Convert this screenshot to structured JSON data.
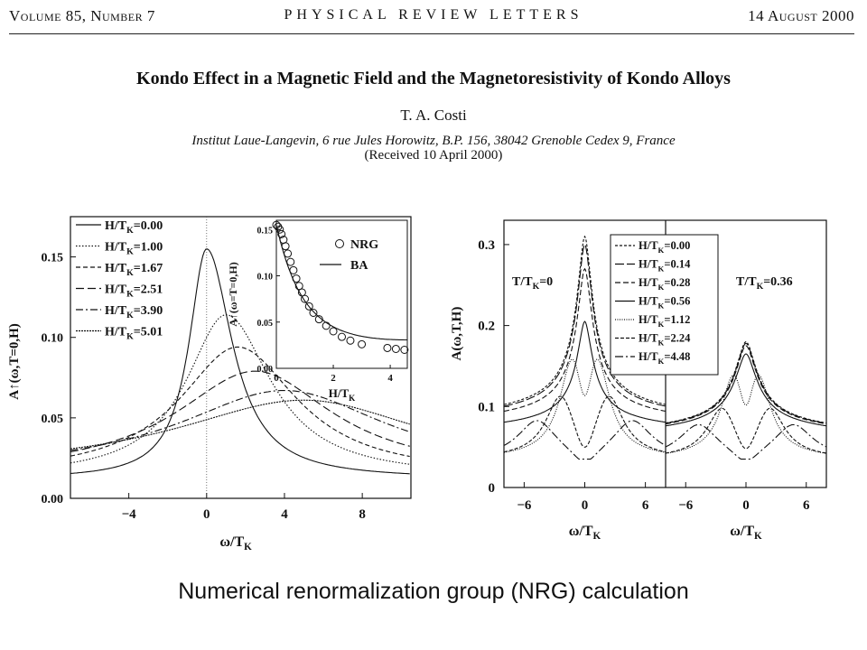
{
  "header": {
    "volume": "Volume 85, Number 7",
    "journal": "PHYSICAL REVIEW LETTERS",
    "date": "14 August 2000"
  },
  "paper": {
    "title": "Kondo Effect in a Magnetic Field and the Magnetoresistivity of Kondo Alloys",
    "author": "T. A. Costi",
    "affiliation": "Institut Laue-Langevin, 6 rue Jules Horowitz, B.P. 156, 38042 Grenoble Cedex 9, France",
    "received": "(Received 10 April 2000)"
  },
  "chart_data": [
    {
      "type": "line",
      "xlabel": "ω/T_K",
      "ylabel": "A↑(ω,T=0,H)",
      "xlim": [
        -7,
        10.5
      ],
      "ylim": [
        0,
        0.175
      ],
      "xticks": [
        "−4",
        "0",
        "4",
        "8"
      ],
      "yticks": [
        "0.00",
        "0.05",
        "0.10",
        "0.15"
      ],
      "legend": "top-left",
      "series": [
        {
          "name": "H/T_K=0.00",
          "peak_x": 0.0,
          "peak_y": 0.155
        },
        {
          "name": "H/T_K=1.00",
          "peak_x": 1.0,
          "peak_y": 0.114
        },
        {
          "name": "H/T_K=1.67",
          "peak_x": 1.6,
          "peak_y": 0.094
        },
        {
          "name": "H/T_K=2.51",
          "peak_x": 2.5,
          "peak_y": 0.079
        },
        {
          "name": "H/T_K=3.90",
          "peak_x": 4.0,
          "peak_y": 0.067
        },
        {
          "name": "H/T_K=5.01",
          "peak_x": 5.0,
          "peak_y": 0.061
        }
      ],
      "inset": {
        "type": "scatter",
        "xlabel": "H/T_K",
        "ylabel": "A↑(ω=T=0,H)",
        "xlim": [
          0,
          4.6
        ],
        "ylim": [
          0,
          0.16
        ],
        "xticks": [
          "0",
          "2",
          "4"
        ],
        "yticks": [
          "0.00",
          "0.05",
          "0.10",
          "0.15"
        ],
        "legend": [
          "NRG",
          "BA"
        ],
        "nrg_points": [
          [
            0.0,
            0.155
          ],
          [
            0.06,
            0.153
          ],
          [
            0.12,
            0.15
          ],
          [
            0.18,
            0.145
          ],
          [
            0.25,
            0.139
          ],
          [
            0.32,
            0.132
          ],
          [
            0.4,
            0.124
          ],
          [
            0.5,
            0.115
          ],
          [
            0.6,
            0.106
          ],
          [
            0.7,
            0.097
          ],
          [
            0.8,
            0.089
          ],
          [
            0.9,
            0.082
          ],
          [
            1.0,
            0.075
          ],
          [
            1.15,
            0.067
          ],
          [
            1.3,
            0.06
          ],
          [
            1.5,
            0.053
          ],
          [
            1.75,
            0.046
          ],
          [
            2.0,
            0.04
          ],
          [
            2.3,
            0.034
          ],
          [
            2.6,
            0.03
          ],
          [
            3.0,
            0.026
          ],
          [
            3.9,
            0.022
          ],
          [
            4.2,
            0.021
          ],
          [
            4.5,
            0.02
          ]
        ]
      }
    },
    {
      "type": "line",
      "xlabel": "ω/T_K",
      "ylabel": "A(ω,T,H)",
      "xlim": [
        -8,
        8
      ],
      "ylim": [
        0,
        0.33
      ],
      "xticks": [
        "−6",
        "0",
        "6",
        "−6",
        "0",
        "6"
      ],
      "yticks": [
        "0",
        "0.1",
        "0.2",
        "0.3"
      ],
      "panels": [
        "T/T_K=0",
        "T/T_K=0.36"
      ],
      "legend": "top-center",
      "series": [
        {
          "name": "H/T_K=0.00",
          "peak_T0": 0.31,
          "peak_T036": 0.18
        },
        {
          "name": "H/T_K=0.14",
          "peak_T0": 0.3,
          "peak_T036": 0.178
        },
        {
          "name": "H/T_K=0.28",
          "peak_T0": 0.27,
          "peak_T036": 0.175
        },
        {
          "name": "H/T_K=0.56",
          "peak_T0": 0.205,
          "peak_T036": 0.165
        },
        {
          "name": "H/T_K=1.12",
          "peak_T0": 0.152,
          "peak_T036": 0.133
        },
        {
          "name": "H/T_K=2.24",
          "peak_T0": 0.11,
          "peak_T036": 0.095
        },
        {
          "name": "H/T_K=4.48",
          "peak_T0": 0.08,
          "peak_T036": 0.075
        }
      ]
    }
  ],
  "caption": "Numerical renormalization group (NRG) calculation"
}
